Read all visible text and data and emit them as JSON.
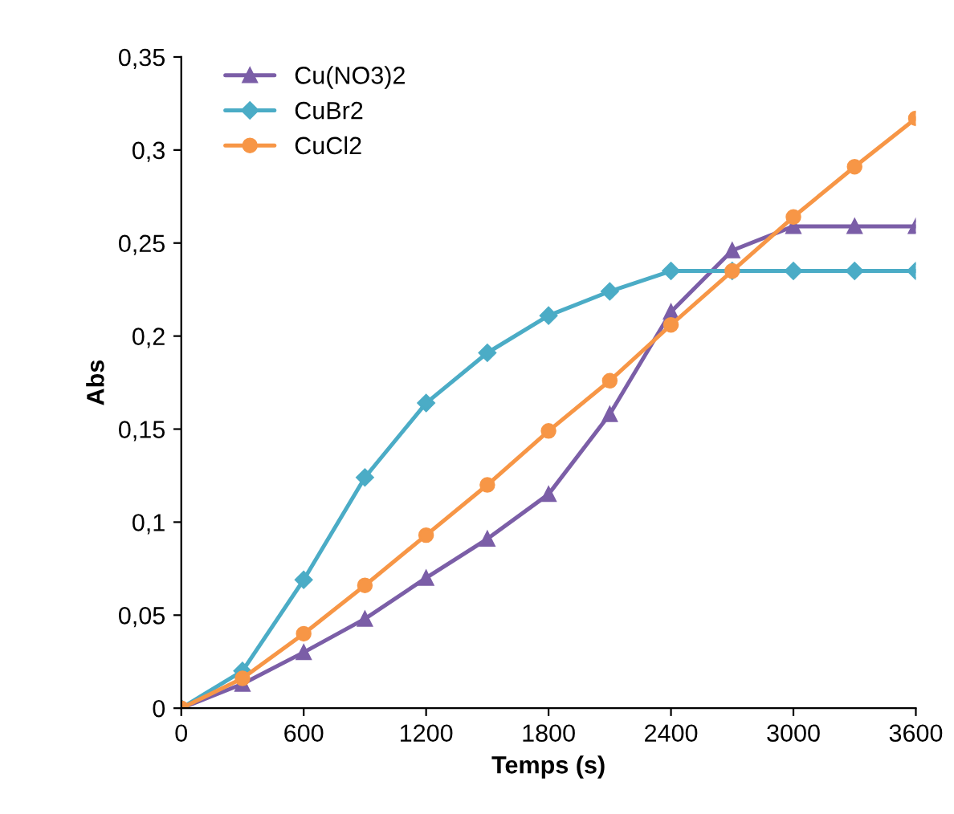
{
  "chart_data": {
    "type": "line",
    "xlabel": "Temps (s)",
    "ylabel": "Abs",
    "x": [
      0,
      300,
      600,
      900,
      1200,
      1500,
      1800,
      2100,
      2400,
      2700,
      3000,
      3300,
      3600
    ],
    "xlim": [
      0,
      3600
    ],
    "xticks": [
      0,
      600,
      1200,
      1800,
      2400,
      3000,
      3600
    ],
    "ylim": [
      0,
      0.35
    ],
    "yticks": [
      {
        "value": 0,
        "label": "0"
      },
      {
        "value": 0.05,
        "label": "0,05"
      },
      {
        "value": 0.1,
        "label": "0,1"
      },
      {
        "value": 0.15,
        "label": "0,15"
      },
      {
        "value": 0.2,
        "label": "0,2"
      },
      {
        "value": 0.25,
        "label": "0,25"
      },
      {
        "value": 0.3,
        "label": "0,3"
      },
      {
        "value": 0.35,
        "label": "0,35"
      }
    ],
    "grid": false,
    "legend": "top left",
    "line_style": "solid",
    "series": [
      {
        "name": "Cu(NO3)2",
        "color": "#7b5ea7",
        "marker": "triangle",
        "values": [
          0,
          0.013,
          0.03,
          0.048,
          0.07,
          0.091,
          0.115,
          0.158,
          0.213,
          0.246,
          0.259,
          0.259,
          0.259
        ]
      },
      {
        "name": "CuBr2",
        "color": "#4bacc6",
        "marker": "diamond",
        "values": [
          0,
          0.02,
          0.069,
          0.124,
          0.164,
          0.191,
          0.211,
          0.224,
          0.235,
          0.235,
          0.235,
          0.235,
          0.235
        ]
      },
      {
        "name": "CuCl2",
        "color": "#f79646",
        "marker": "circle",
        "values": [
          0,
          0.016,
          0.04,
          0.066,
          0.093,
          0.12,
          0.149,
          0.176,
          0.206,
          0.235,
          0.264,
          0.291,
          0.317
        ]
      }
    ]
  }
}
